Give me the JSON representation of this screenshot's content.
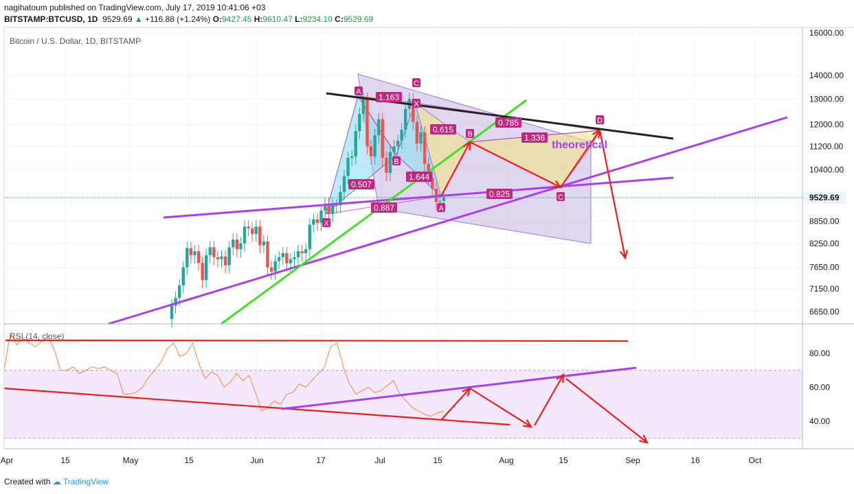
{
  "header": {
    "publisher": "nagihatoum",
    "published_text": "published on TradingView.com, July 17, 2019 10:41:06 +03",
    "symbol": "BITSTAMP:BTCUSD, 1D",
    "last": "9529.69",
    "change": "+116.88 (+1.24%)",
    "o_label": "O:",
    "o_val": "9427.45",
    "h_label": "H:",
    "h_val": "9610.47",
    "l_label": "L:",
    "l_val": "9234.10",
    "c_label": "C:",
    "c_val": "9529.69"
  },
  "footer": {
    "prefix": "Created with",
    "brand": "TradingView"
  },
  "colors": {
    "up": "#26a69a",
    "down": "#ef5350",
    "purple": "#a93ff5",
    "red": "#f21b1b",
    "green": "#3fe01f",
    "magenta_label": "#c2287f"
  },
  "chart_data": [
    {
      "type": "line",
      "title": "Bitcoin / U.S. Dollar, 1D, BITSTAMP",
      "y_ticks": [
        "16000.00",
        "14000.00",
        "13000.00",
        "12000.00",
        "11200.00",
        "10400.00",
        "8850.00",
        "8250.00",
        "7650.00",
        "7150.00",
        "6650.00"
      ],
      "y_scale": "log",
      "last_price": "9529.69",
      "x_ticks": [
        "Apr",
        "15",
        "May",
        "15",
        "Jun",
        "17",
        "Jul",
        "15",
        "Aug",
        "15",
        "Sep",
        "16",
        "Oct"
      ],
      "pattern_labels": [
        "A",
        "C",
        "X",
        "B",
        "A",
        "D",
        "B",
        "C",
        "X"
      ],
      "ratio_labels": [
        "1.163",
        "0.615",
        "0.785",
        "1.336",
        "0.507",
        "1.644",
        "0.825",
        "0.887"
      ],
      "annotations": [
        "theoretical"
      ],
      "closes": [
        6780,
        6950,
        7230,
        7650,
        8130,
        7950,
        8050,
        7760,
        7350,
        7950,
        8150,
        7900,
        7850,
        7920,
        7700,
        8150,
        8350,
        8100,
        8250,
        8700,
        8650,
        8500,
        8700,
        8200,
        8300,
        7650,
        7550,
        7800,
        7900,
        8000,
        7750,
        7850,
        7900,
        8050,
        8000,
        8100,
        8750,
        8900,
        8800,
        9150,
        9350,
        9050,
        9300,
        9300,
        9700,
        10200,
        10800,
        10850,
        11750,
        12400,
        13000,
        11200,
        10850,
        11600,
        12200,
        10800,
        10300,
        11000,
        11200,
        11400,
        11800,
        12600,
        13000,
        12100,
        11300,
        11700,
        10600,
        10150,
        9800,
        9400,
        9430,
        9530
      ]
    },
    {
      "type": "line",
      "title": "RSI (14, close)",
      "y_ticks": [
        "80.00",
        "60.00",
        "40.00"
      ],
      "ylim": [
        25,
        95
      ],
      "band": [
        30,
        70
      ],
      "values": [
        70,
        92,
        85,
        89,
        86,
        84,
        87,
        90,
        82,
        70,
        70,
        72,
        68,
        70,
        72,
        71,
        72,
        70,
        68,
        56,
        56,
        57,
        60,
        66,
        70,
        75,
        83,
        86,
        78,
        80,
        86,
        74,
        65,
        69,
        67,
        60,
        63,
        68,
        64,
        67,
        57,
        46,
        48,
        52,
        50,
        56,
        57,
        62,
        60,
        64,
        68,
        72,
        84,
        86,
        72,
        62,
        56,
        58,
        60,
        57,
        58,
        61,
        64,
        56,
        52,
        48,
        46,
        44,
        43,
        45,
        46
      ]
    }
  ]
}
